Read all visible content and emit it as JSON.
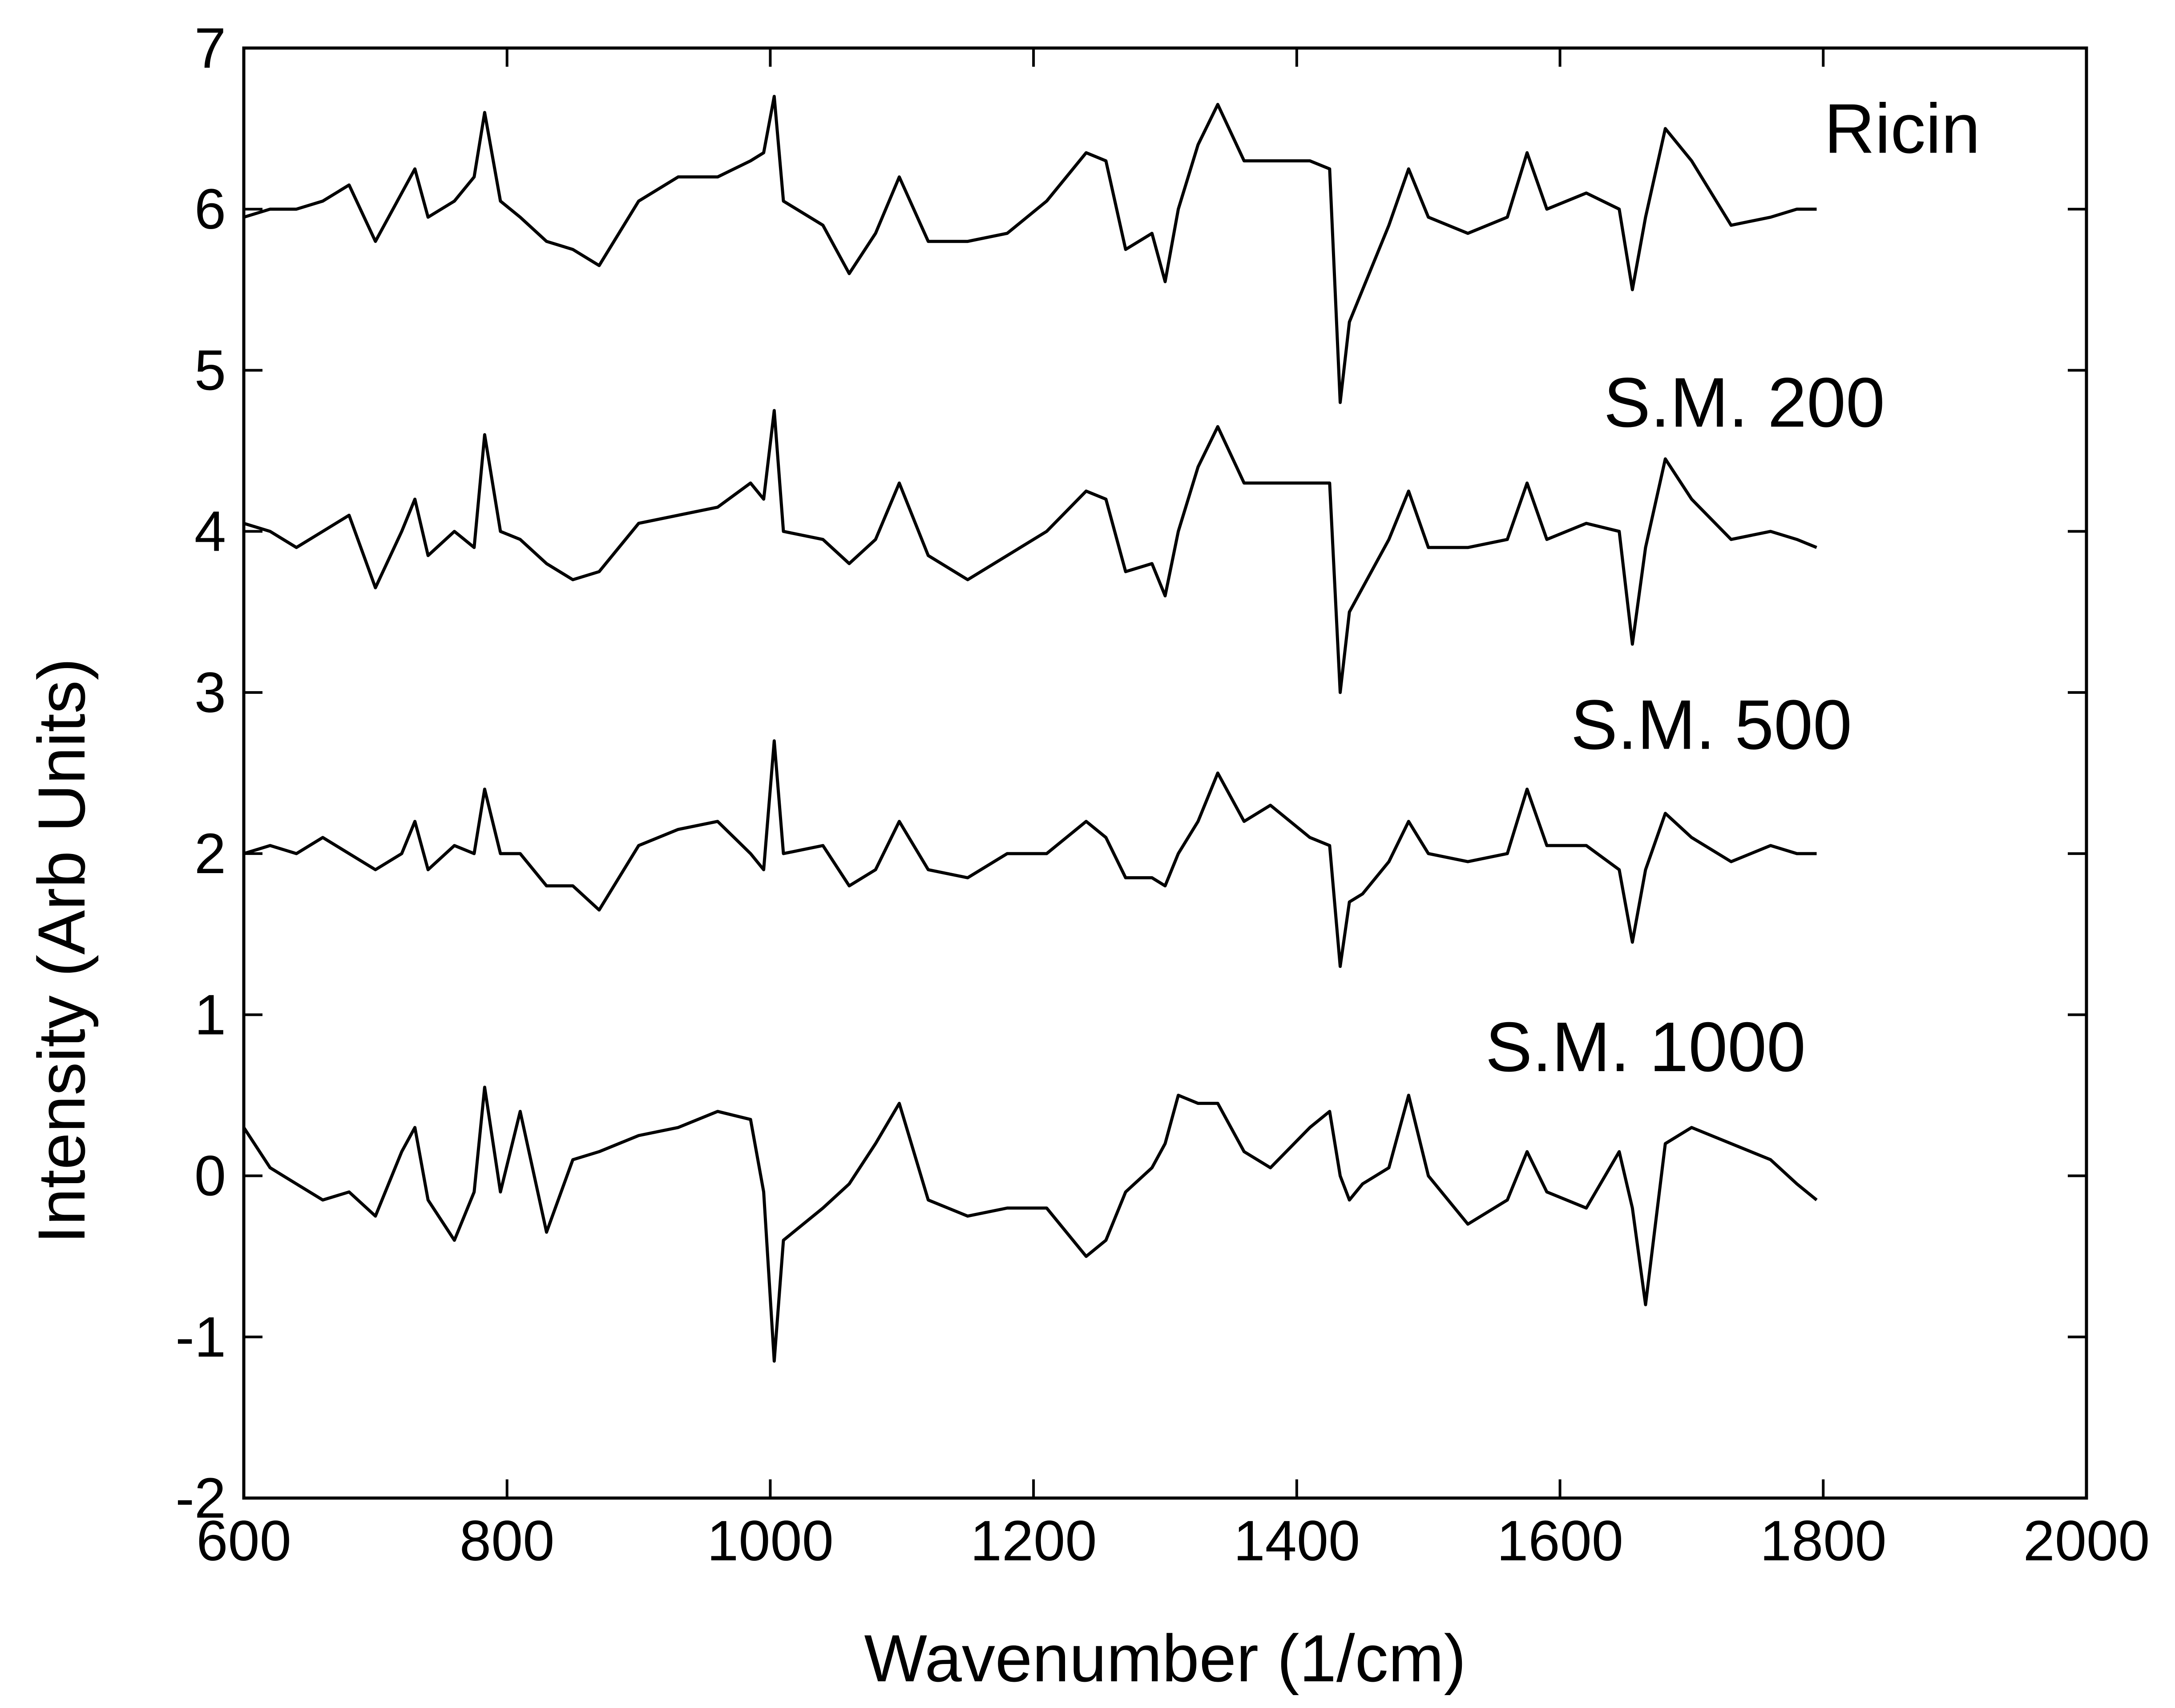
{
  "chart_data": {
    "type": "line",
    "title": "",
    "xlabel": "Wavenumber (1/cm)",
    "ylabel": "Intensity (Arb Units)",
    "xlim": [
      600,
      2000
    ],
    "ylim": [
      -2,
      7
    ],
    "xticks": [
      600,
      800,
      1000,
      1200,
      1400,
      1600,
      1800,
      2000
    ],
    "yticks": [
      -2,
      -1,
      0,
      1,
      2,
      3,
      4,
      5,
      6,
      7
    ],
    "grid": false,
    "legend": "none",
    "line_color": "#000000",
    "x": [
      600,
      620,
      640,
      660,
      680,
      700,
      720,
      730,
      740,
      760,
      775,
      783,
      795,
      810,
      830,
      850,
      870,
      900,
      930,
      960,
      985,
      995,
      1003,
      1010,
      1040,
      1060,
      1080,
      1098,
      1120,
      1150,
      1180,
      1210,
      1240,
      1255,
      1270,
      1290,
      1300,
      1310,
      1325,
      1340,
      1360,
      1380,
      1410,
      1425,
      1433,
      1440,
      1450,
      1470,
      1485,
      1500,
      1530,
      1560,
      1575,
      1590,
      1620,
      1645,
      1655,
      1665,
      1680,
      1700,
      1730,
      1760,
      1780,
      1795
    ],
    "series": [
      {
        "name": "Ricin",
        "values": [
          5.95,
          6.0,
          6.0,
          6.05,
          6.15,
          5.8,
          6.1,
          6.25,
          5.95,
          6.05,
          6.2,
          6.6,
          6.05,
          5.95,
          5.8,
          5.75,
          5.65,
          6.05,
          6.2,
          6.2,
          6.3,
          6.35,
          6.7,
          6.05,
          5.9,
          5.6,
          5.85,
          6.2,
          5.8,
          5.8,
          5.85,
          6.05,
          6.35,
          6.3,
          5.75,
          5.85,
          5.55,
          6.0,
          6.4,
          6.65,
          6.3,
          6.3,
          6.3,
          6.25,
          4.8,
          5.3,
          5.5,
          5.9,
          6.25,
          5.95,
          5.85,
          5.95,
          6.35,
          6.0,
          6.1,
          6.0,
          5.5,
          5.95,
          6.5,
          6.3,
          5.9,
          5.95,
          6.0,
          6.0
        ]
      },
      {
        "name": "S.M. 200",
        "values": [
          4.05,
          4.0,
          3.9,
          4.0,
          4.1,
          3.65,
          4.0,
          4.2,
          3.85,
          4.0,
          3.9,
          4.6,
          4.0,
          3.95,
          3.8,
          3.7,
          3.75,
          4.05,
          4.1,
          4.15,
          4.3,
          4.2,
          4.75,
          4.0,
          3.95,
          3.8,
          3.95,
          4.3,
          3.85,
          3.7,
          3.85,
          4.0,
          4.25,
          4.2,
          3.75,
          3.8,
          3.6,
          4.0,
          4.4,
          4.65,
          4.3,
          4.3,
          4.3,
          4.3,
          3.0,
          3.5,
          3.65,
          3.95,
          4.25,
          3.9,
          3.9,
          3.95,
          4.3,
          3.95,
          4.05,
          4.0,
          3.3,
          3.9,
          4.45,
          4.2,
          3.95,
          4.0,
          3.95,
          3.9
        ]
      },
      {
        "name": "S.M. 500",
        "values": [
          2.0,
          2.05,
          2.0,
          2.1,
          2.0,
          1.9,
          2.0,
          2.2,
          1.9,
          2.05,
          2.0,
          2.4,
          2.0,
          2.0,
          1.8,
          1.8,
          1.65,
          2.05,
          2.15,
          2.2,
          2.0,
          1.9,
          2.7,
          2.0,
          2.05,
          1.8,
          1.9,
          2.2,
          1.9,
          1.85,
          2.0,
          2.0,
          2.2,
          2.1,
          1.85,
          1.85,
          1.8,
          2.0,
          2.2,
          2.5,
          2.2,
          2.3,
          2.1,
          2.05,
          1.3,
          1.7,
          1.75,
          1.95,
          2.2,
          2.0,
          1.95,
          2.0,
          2.4,
          2.05,
          2.05,
          1.9,
          1.45,
          1.9,
          2.25,
          2.1,
          1.95,
          2.05,
          2.0,
          2.0
        ]
      },
      {
        "name": "S.M. 1000",
        "values": [
          0.3,
          0.05,
          -0.05,
          -0.15,
          -0.1,
          -0.25,
          0.15,
          0.3,
          -0.15,
          -0.4,
          -0.1,
          0.55,
          -0.1,
          0.4,
          -0.35,
          0.1,
          0.15,
          0.25,
          0.3,
          0.4,
          0.35,
          -0.1,
          -1.15,
          -0.4,
          -0.2,
          -0.05,
          0.2,
          0.45,
          -0.15,
          -0.25,
          -0.2,
          -0.2,
          -0.5,
          -0.4,
          -0.1,
          0.05,
          0.2,
          0.5,
          0.45,
          0.45,
          0.15,
          0.05,
          0.3,
          0.4,
          0.0,
          -0.15,
          -0.05,
          0.05,
          0.5,
          0.0,
          -0.3,
          -0.15,
          0.15,
          -0.1,
          -0.2,
          0.15,
          -0.2,
          -0.8,
          0.2,
          0.3,
          0.2,
          0.1,
          -0.05,
          -0.15
        ]
      }
    ],
    "series_labels": [
      {
        "text": "Ricin",
        "at_x": 1860,
        "at_y": 6.35
      },
      {
        "text": "S.M. 200",
        "at_x": 1740,
        "at_y": 4.65
      },
      {
        "text": "S.M. 500",
        "at_x": 1715,
        "at_y": 2.65
      },
      {
        "text": "S.M. 1000",
        "at_x": 1665,
        "at_y": 0.65
      }
    ]
  }
}
